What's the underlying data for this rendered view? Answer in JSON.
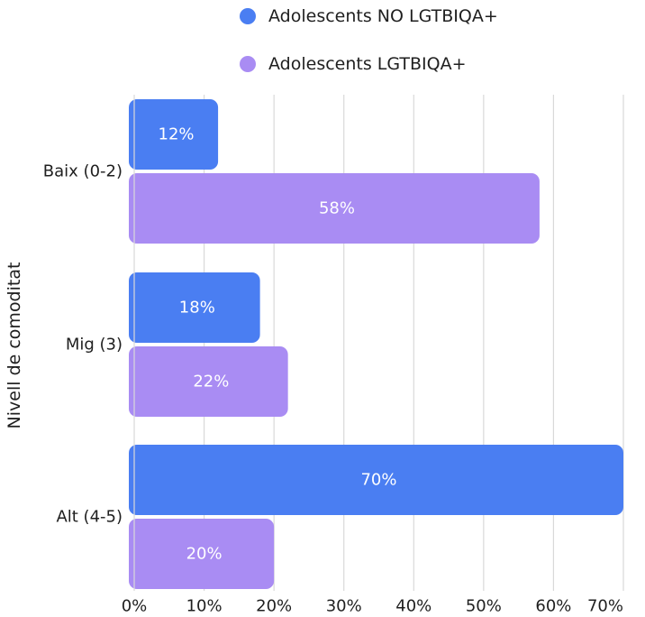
{
  "chart_data": {
    "type": "bar",
    "orientation": "horizontal",
    "categories": [
      "Baix (0-2)",
      "Mig (3)",
      "Alt (4-5)"
    ],
    "series": [
      {
        "name": "Adolescents NO LGTBIQA+",
        "values": [
          12,
          18,
          70
        ],
        "labels": [
          "12%",
          "18%",
          "70%"
        ],
        "color": "#4a7ef2"
      },
      {
        "name": "Adolescents LGTBIQA+",
        "values": [
          58,
          22,
          20
        ],
        "labels": [
          "58%",
          "22%",
          "20%"
        ],
        "color": "#a98cf3"
      }
    ],
    "xlabel": "",
    "ylabel": "Nivell de comoditat",
    "xlim": [
      0,
      70
    ],
    "x_ticks": [
      0,
      10,
      20,
      30,
      40,
      50,
      60,
      70
    ],
    "x_tick_labels": [
      "0%",
      "10%",
      "20%",
      "30%",
      "40%",
      "50%",
      "60%",
      "70%"
    ],
    "grid": true,
    "legend_position": "top"
  }
}
